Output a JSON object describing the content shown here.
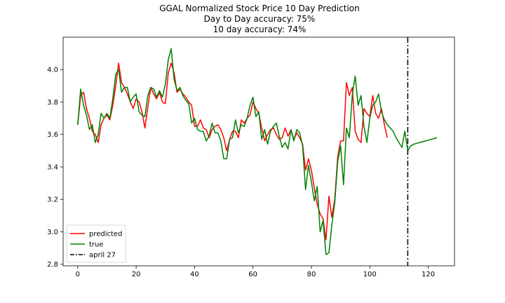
{
  "chart_data": {
    "type": "line",
    "title": "GGAL Normalized Stock Price 10 Day Prediction",
    "subtitle_lines": [
      "Day to Day accuracy: 75%",
      "10 day accuracy: 74%"
    ],
    "xlim": [
      -5,
      129
    ],
    "ylim": [
      2.79,
      4.2
    ],
    "xticks": [
      0,
      20,
      40,
      60,
      80,
      100,
      120
    ],
    "xtick_labels": [
      "0",
      "20",
      "40",
      "60",
      "80",
      "100",
      "120"
    ],
    "yticks": [
      2.8,
      3.0,
      3.2,
      3.4,
      3.6,
      3.8,
      4.0
    ],
    "ytick_labels": [
      "2.8",
      "3.0",
      "3.2",
      "3.4",
      "3.6",
      "3.8",
      "4.0"
    ],
    "grid": false,
    "legend_position": "lower-left",
    "series": [
      {
        "name": "predicted",
        "color": "#ff0000",
        "style": "solid",
        "points": [
          [
            0,
            3.66
          ],
          [
            1,
            3.84
          ],
          [
            2,
            3.86
          ],
          [
            3,
            3.76
          ],
          [
            4,
            3.7
          ],
          [
            5,
            3.62
          ],
          [
            6,
            3.6
          ],
          [
            7,
            3.55
          ],
          [
            8,
            3.66
          ],
          [
            9,
            3.7
          ],
          [
            10,
            3.72
          ],
          [
            11,
            3.69
          ],
          [
            12,
            3.78
          ],
          [
            13,
            3.9
          ],
          [
            14,
            4.04
          ],
          [
            15,
            3.92
          ],
          [
            16,
            3.89
          ],
          [
            17,
            3.85
          ],
          [
            18,
            3.8
          ],
          [
            19,
            3.76
          ],
          [
            20,
            3.82
          ],
          [
            21,
            3.8
          ],
          [
            22,
            3.74
          ],
          [
            23,
            3.64
          ],
          [
            24,
            3.77
          ],
          [
            25,
            3.89
          ],
          [
            26,
            3.85
          ],
          [
            27,
            3.82
          ],
          [
            28,
            3.86
          ],
          [
            29,
            3.8
          ],
          [
            30,
            3.79
          ],
          [
            31,
            3.98
          ],
          [
            32,
            4.04
          ],
          [
            33,
            3.98
          ],
          [
            34,
            3.86
          ],
          [
            35,
            3.88
          ],
          [
            36,
            3.85
          ],
          [
            37,
            3.83
          ],
          [
            38,
            3.8
          ],
          [
            39,
            3.78
          ],
          [
            40,
            3.65
          ],
          [
            41,
            3.65
          ],
          [
            42,
            3.69
          ],
          [
            43,
            3.64
          ],
          [
            44,
            3.63
          ],
          [
            45,
            3.58
          ],
          [
            46,
            3.63
          ],
          [
            47,
            3.65
          ],
          [
            48,
            3.66
          ],
          [
            49,
            3.63
          ],
          [
            50,
            3.58
          ],
          [
            51,
            3.5
          ],
          [
            52,
            3.57
          ],
          [
            53,
            3.62
          ],
          [
            54,
            3.62
          ],
          [
            55,
            3.58
          ],
          [
            56,
            3.69
          ],
          [
            57,
            3.67
          ],
          [
            58,
            3.7
          ],
          [
            59,
            3.72
          ],
          [
            60,
            3.8
          ],
          [
            61,
            3.76
          ],
          [
            62,
            3.73
          ],
          [
            63,
            3.64
          ],
          [
            64,
            3.56
          ],
          [
            65,
            3.6
          ],
          [
            66,
            3.63
          ],
          [
            67,
            3.64
          ],
          [
            68,
            3.6
          ],
          [
            69,
            3.57
          ],
          [
            70,
            3.58
          ],
          [
            71,
            3.64
          ],
          [
            72,
            3.59
          ],
          [
            73,
            3.63
          ],
          [
            74,
            3.57
          ],
          [
            75,
            3.61
          ],
          [
            76,
            3.58
          ],
          [
            77,
            3.54
          ],
          [
            78,
            3.38
          ],
          [
            79,
            3.45
          ],
          [
            80,
            3.38
          ],
          [
            81,
            3.27
          ],
          [
            82,
            3.17
          ],
          [
            83,
            3.11
          ],
          [
            84,
            3.08
          ],
          [
            85,
            2.95
          ],
          [
            86,
            3.22
          ],
          [
            87,
            3.09
          ],
          [
            88,
            3.2
          ],
          [
            89,
            3.46
          ],
          [
            90,
            3.56
          ],
          [
            91,
            3.56
          ],
          [
            92,
            3.92
          ],
          [
            93,
            3.84
          ],
          [
            94,
            3.89
          ],
          [
            95,
            3.62
          ],
          [
            96,
            3.57
          ],
          [
            97,
            3.55
          ],
          [
            98,
            3.76
          ],
          [
            99,
            3.73
          ],
          [
            100,
            3.71
          ],
          [
            101,
            3.84
          ],
          [
            102,
            3.73
          ],
          [
            103,
            3.7
          ],
          [
            104,
            3.76
          ],
          [
            105,
            3.66
          ],
          [
            106,
            3.58
          ]
        ]
      },
      {
        "name": "true",
        "color": "#008000",
        "style": "solid",
        "points": [
          [
            0,
            3.66
          ],
          [
            1,
            3.88
          ],
          [
            2,
            3.78
          ],
          [
            3,
            3.72
          ],
          [
            4,
            3.63
          ],
          [
            5,
            3.66
          ],
          [
            6,
            3.55
          ],
          [
            7,
            3.6
          ],
          [
            8,
            3.73
          ],
          [
            9,
            3.7
          ],
          [
            10,
            3.73
          ],
          [
            11,
            3.7
          ],
          [
            12,
            3.82
          ],
          [
            13,
            3.97
          ],
          [
            14,
            4.0
          ],
          [
            15,
            3.86
          ],
          [
            16,
            3.89
          ],
          [
            17,
            3.89
          ],
          [
            18,
            3.8
          ],
          [
            19,
            3.83
          ],
          [
            20,
            3.85
          ],
          [
            21,
            3.74
          ],
          [
            22,
            3.72
          ],
          [
            23,
            3.71
          ],
          [
            24,
            3.84
          ],
          [
            25,
            3.89
          ],
          [
            26,
            3.88
          ],
          [
            27,
            3.83
          ],
          [
            28,
            3.87
          ],
          [
            29,
            3.83
          ],
          [
            30,
            3.91
          ],
          [
            31,
            4.06
          ],
          [
            32,
            4.13
          ],
          [
            33,
            3.94
          ],
          [
            34,
            3.87
          ],
          [
            35,
            3.89
          ],
          [
            36,
            3.84
          ],
          [
            37,
            3.81
          ],
          [
            38,
            3.79
          ],
          [
            39,
            3.67
          ],
          [
            40,
            3.7
          ],
          [
            41,
            3.63
          ],
          [
            42,
            3.62
          ],
          [
            43,
            3.62
          ],
          [
            44,
            3.56
          ],
          [
            45,
            3.59
          ],
          [
            46,
            3.67
          ],
          [
            47,
            3.61
          ],
          [
            48,
            3.61
          ],
          [
            49,
            3.56
          ],
          [
            50,
            3.45
          ],
          [
            51,
            3.45
          ],
          [
            52,
            3.57
          ],
          [
            53,
            3.58
          ],
          [
            54,
            3.69
          ],
          [
            55,
            3.61
          ],
          [
            56,
            3.66
          ],
          [
            57,
            3.65
          ],
          [
            58,
            3.7
          ],
          [
            59,
            3.78
          ],
          [
            60,
            3.83
          ],
          [
            61,
            3.71
          ],
          [
            62,
            3.74
          ],
          [
            63,
            3.57
          ],
          [
            64,
            3.63
          ],
          [
            65,
            3.54
          ],
          [
            66,
            3.62
          ],
          [
            67,
            3.65
          ],
          [
            68,
            3.67
          ],
          [
            69,
            3.59
          ],
          [
            70,
            3.52
          ],
          [
            71,
            3.55
          ],
          [
            72,
            3.51
          ],
          [
            73,
            3.63
          ],
          [
            74,
            3.56
          ],
          [
            75,
            3.63
          ],
          [
            76,
            3.61
          ],
          [
            77,
            3.53
          ],
          [
            78,
            3.26
          ],
          [
            79,
            3.41
          ],
          [
            80,
            3.31
          ],
          [
            81,
            3.19
          ],
          [
            82,
            3.28
          ],
          [
            83,
            3.0
          ],
          [
            84,
            3.07
          ],
          [
            85,
            2.86
          ],
          [
            86,
            2.87
          ],
          [
            87,
            3.04
          ],
          [
            88,
            3.18
          ],
          [
            89,
            3.43
          ],
          [
            90,
            3.53
          ],
          [
            91,
            3.29
          ],
          [
            92,
            3.64
          ],
          [
            93,
            3.58
          ],
          [
            94,
            3.84
          ],
          [
            95,
            3.96
          ],
          [
            96,
            3.78
          ],
          [
            97,
            3.84
          ],
          [
            98,
            3.65
          ],
          [
            99,
            3.55
          ],
          [
            100,
            3.7
          ],
          [
            101,
            3.78
          ],
          [
            102,
            3.8
          ],
          [
            103,
            3.85
          ],
          [
            104,
            3.74
          ],
          [
            105,
            3.69
          ],
          [
            106,
            3.66
          ],
          [
            107,
            3.64
          ],
          [
            108,
            3.62
          ],
          [
            109,
            3.58
          ],
          [
            110,
            3.55
          ],
          [
            111,
            3.52
          ],
          [
            112,
            3.62
          ],
          [
            113,
            3.5
          ],
          [
            114,
            3.53
          ],
          [
            115,
            3.54
          ],
          [
            116,
            3.545
          ],
          [
            117,
            3.55
          ],
          [
            118,
            3.555
          ],
          [
            119,
            3.56
          ],
          [
            120,
            3.565
          ],
          [
            121,
            3.57
          ],
          [
            122,
            3.575
          ],
          [
            123,
            3.58
          ]
        ]
      }
    ],
    "vline": {
      "name": "april 27",
      "x": 113,
      "color": "#000000",
      "style": "dash-dot"
    }
  }
}
